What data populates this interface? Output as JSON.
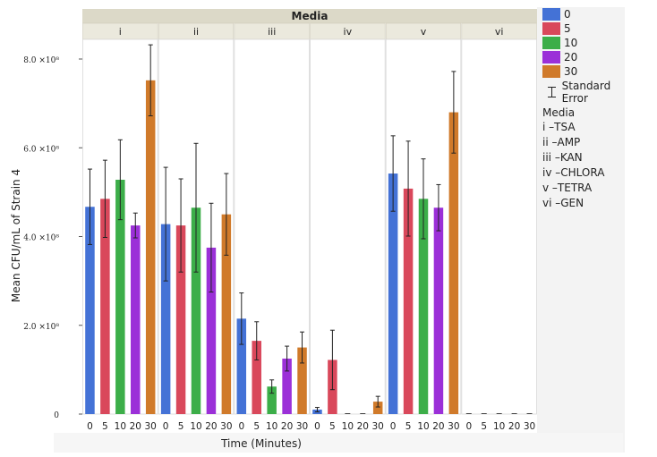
{
  "chart_data": {
    "type": "bar",
    "facet_title": "Media",
    "panels": [
      "i",
      "ii",
      "iii",
      "iv",
      "v",
      "vi"
    ],
    "categories": [
      "0",
      "5",
      "10",
      "20",
      "30"
    ],
    "ylabel": "Mean CFU/mL of Strain 4",
    "xlabel": "Time (Minutes)",
    "ylim": [
      0,
      800000000.0
    ],
    "yticks": [
      {
        "value": 0,
        "label": "0"
      },
      {
        "value": 200000000.0,
        "label": "2.0 ×10⁸"
      },
      {
        "value": 400000000.0,
        "label": "4.0 ×10⁸"
      },
      {
        "value": 600000000.0,
        "label": "6.0 ×10⁸"
      },
      {
        "value": 800000000.0,
        "label": "8.0 ×10⁸"
      }
    ],
    "series_colors": [
      "#4472d6",
      "#d9485b",
      "#3cae49",
      "#9b30d8",
      "#d07a2a"
    ],
    "values": [
      [
        467000000.0,
        485000000.0,
        528000000.0,
        425000000.0,
        752000000.0
      ],
      [
        428000000.0,
        425000000.0,
        465000000.0,
        375000000.0,
        450000000.0
      ],
      [
        215000000.0,
        165000000.0,
        62000000.0,
        125000000.0,
        150000000.0
      ],
      [
        10000000.0,
        122000000.0,
        0,
        0,
        28000000.0
      ],
      [
        542000000.0,
        508000000.0,
        485000000.0,
        465000000.0,
        680000000.0
      ],
      [
        0,
        0,
        0,
        0,
        0
      ]
    ],
    "errors": [
      [
        85000000.0,
        87000000.0,
        90000000.0,
        28000000.0,
        80000000.0
      ],
      [
        128000000.0,
        105000000.0,
        145000000.0,
        100000000.0,
        92000000.0
      ],
      [
        58000000.0,
        43000000.0,
        15000000.0,
        28000000.0,
        35000000.0
      ],
      [
        5000000.0,
        67000000.0,
        0,
        0,
        12000000.0
      ],
      [
        85000000.0,
        107000000.0,
        90000000.0,
        52000000.0,
        92000000.0
      ],
      [
        0,
        0,
        0,
        0,
        0
      ]
    ]
  },
  "legend": {
    "items": [
      {
        "label": "0",
        "color": "#4472d6"
      },
      {
        "label": "5",
        "color": "#d9485b"
      },
      {
        "label": "10",
        "color": "#3cae49"
      },
      {
        "label": "20",
        "color": "#9b30d8"
      },
      {
        "label": "30",
        "color": "#d07a2a"
      }
    ],
    "se_label": "Standard Error",
    "media_title": "Media",
    "media_items": [
      "i –TSA",
      "ii –AMP",
      "iii –KAN",
      "iv –CHLORA",
      "v –TETRA",
      "vi –GEN"
    ]
  }
}
